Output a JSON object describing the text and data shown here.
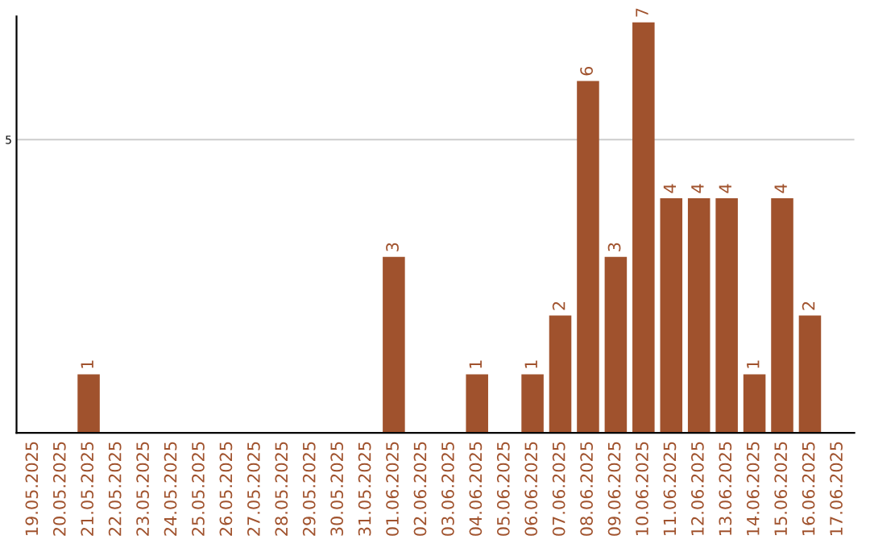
{
  "chart_data": {
    "type": "bar",
    "categories": [
      "19.05.2025",
      "20.05.2025",
      "21.05.2025",
      "22.05.2025",
      "23.05.2025",
      "24.05.2025",
      "25.05.2025",
      "26.05.2025",
      "27.05.2025",
      "28.05.2025",
      "29.05.2025",
      "30.05.2025",
      "31.05.2025",
      "01.06.2025",
      "02.06.2025",
      "03.06.2025",
      "04.06.2025",
      "05.06.2025",
      "06.06.2025",
      "07.06.2025",
      "08.06.2025",
      "09.06.2025",
      "10.06.2025",
      "11.06.2025",
      "12.06.2025",
      "13.06.2025",
      "14.06.2025",
      "15.06.2025",
      "16.06.2025",
      "17.06.2025"
    ],
    "values": [
      0,
      0,
      1,
      0,
      0,
      0,
      0,
      0,
      0,
      0,
      0,
      0,
      0,
      3,
      0,
      0,
      1,
      0,
      1,
      2,
      6,
      3,
      7,
      4,
      4,
      4,
      1,
      4,
      2,
      0
    ],
    "value_labels": [
      null,
      null,
      "1",
      null,
      null,
      null,
      null,
      null,
      null,
      null,
      null,
      null,
      null,
      "3",
      null,
      null,
      "1",
      null,
      "1",
      "2",
      "6",
      "3",
      "7",
      "4",
      "4",
      "4",
      "1",
      "4",
      "2",
      null
    ],
    "color": "#a0522d",
    "ylim": [
      0,
      7.1
    ],
    "yticks": [
      5
    ],
    "grid": "y"
  }
}
